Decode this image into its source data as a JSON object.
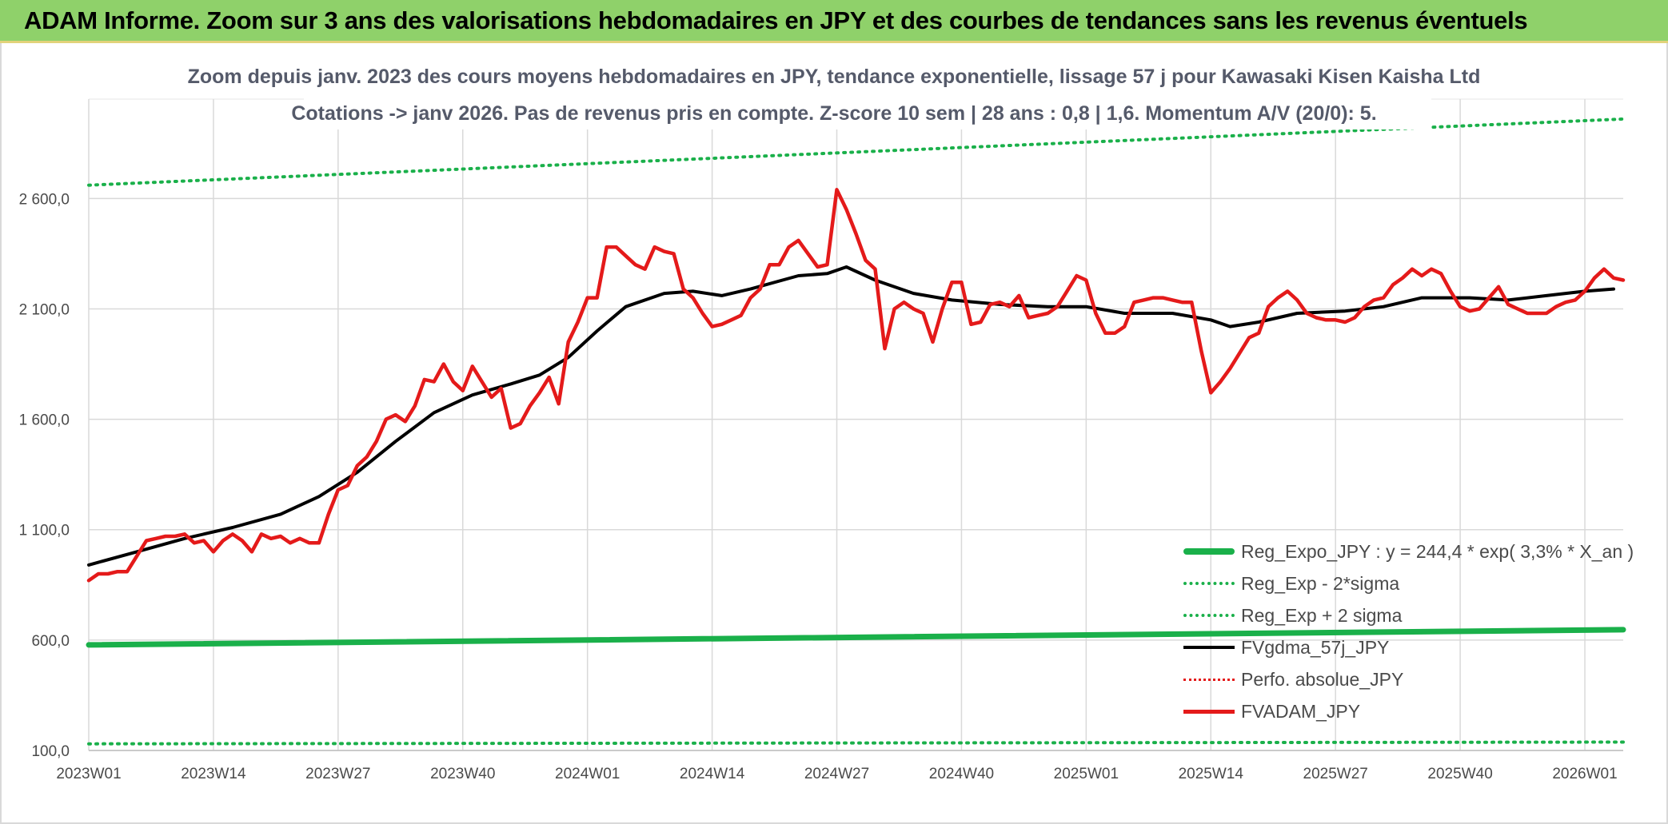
{
  "header": {
    "title": "ADAM Informe. Zoom sur 3 ans des valorisations hebdomadaires en JPY et des courbes de tendances sans les revenus éventuels"
  },
  "chart_data": {
    "type": "line",
    "title_line1": "Zoom depuis janv. 2023 des cours moyens hebdomadaires en JPY, tendance exponentielle, lissage 57 j pour Kawasaki Kisen Kaisha Ltd",
    "title_line2": "Cotations -> janv 2026. Pas de revenus pris en compte. Z-score 10 sem | 28 ans : 0,8 | 1,6. Momentum A/V (20/0): 5.",
    "ylim": [
      100,
      3050
    ],
    "y_ticks": [
      100,
      600,
      1100,
      1600,
      2100,
      2600
    ],
    "y_tick_labels": [
      "100,0",
      "600,0",
      "1 100,0",
      "1 600,0",
      "2 100,0",
      "2 600,0"
    ],
    "x_count": 160,
    "x_ticks": [
      {
        "index": 0,
        "label": "2023W01"
      },
      {
        "index": 13,
        "label": "2023W14"
      },
      {
        "index": 26,
        "label": "2023W27"
      },
      {
        "index": 39,
        "label": "2023W40"
      },
      {
        "index": 52,
        "label": "2024W01"
      },
      {
        "index": 65,
        "label": "2024W14"
      },
      {
        "index": 78,
        "label": "2024W27"
      },
      {
        "index": 91,
        "label": "2024W40"
      },
      {
        "index": 104,
        "label": "2025W01"
      },
      {
        "index": 117,
        "label": "2025W14"
      },
      {
        "index": 130,
        "label": "2025W27"
      },
      {
        "index": 143,
        "label": "2025W40"
      },
      {
        "index": 156,
        "label": "2026W01"
      }
    ],
    "legend_position": "bottom-right",
    "series": [
      {
        "name": "Reg_Expo_JPY : y = 244,4 * exp( 3,3% *  X_an )",
        "style": "solid",
        "color": "#1ab04a",
        "keypoints": [
          [
            0,
            578
          ],
          [
            160,
            647
          ]
        ]
      },
      {
        "name": "Reg_Exp - 2*sigma",
        "style": "dotted",
        "color": "#1ab04a",
        "keypoints": [
          [
            0,
            130
          ],
          [
            160,
            138
          ]
        ]
      },
      {
        "name": "Reg_Exp + 2 sigma",
        "style": "dotted",
        "color": "#1ab04a",
        "keypoints": [
          [
            0,
            2660
          ],
          [
            160,
            2960
          ]
        ]
      },
      {
        "name": "FVgdma_57j_JPY",
        "style": "solid",
        "color": "#000000",
        "keypoints": [
          [
            0,
            940
          ],
          [
            5,
            1000
          ],
          [
            10,
            1060
          ],
          [
            15,
            1110
          ],
          [
            20,
            1170
          ],
          [
            24,
            1250
          ],
          [
            28,
            1360
          ],
          [
            32,
            1500
          ],
          [
            36,
            1630
          ],
          [
            40,
            1710
          ],
          [
            44,
            1760
          ],
          [
            47,
            1800
          ],
          [
            50,
            1880
          ],
          [
            53,
            2000
          ],
          [
            56,
            2110
          ],
          [
            60,
            2170
          ],
          [
            63,
            2180
          ],
          [
            66,
            2160
          ],
          [
            69,
            2190
          ],
          [
            74,
            2250
          ],
          [
            77,
            2260
          ],
          [
            79,
            2290
          ],
          [
            82,
            2230
          ],
          [
            86,
            2170
          ],
          [
            90,
            2140
          ],
          [
            95,
            2120
          ],
          [
            100,
            2110
          ],
          [
            104,
            2110
          ],
          [
            108,
            2080
          ],
          [
            113,
            2080
          ],
          [
            117,
            2050
          ],
          [
            119,
            2020
          ],
          [
            122,
            2040
          ],
          [
            126,
            2080
          ],
          [
            131,
            2090
          ],
          [
            135,
            2110
          ],
          [
            139,
            2150
          ],
          [
            144,
            2150
          ],
          [
            148,
            2140
          ],
          [
            152,
            2160
          ],
          [
            156,
            2180
          ],
          [
            159,
            2190
          ]
        ]
      },
      {
        "name": "Perfo. absolue_JPY",
        "style": "dotted",
        "color": "#e41a1a",
        "keypoints": []
      },
      {
        "name": "FVADAM_JPY",
        "style": "solid",
        "color": "#e41a1a",
        "keypoints": [
          [
            0,
            870
          ],
          [
            1,
            900
          ],
          [
            2,
            900
          ],
          [
            3,
            910
          ],
          [
            4,
            910
          ],
          [
            5,
            980
          ],
          [
            6,
            1050
          ],
          [
            7,
            1060
          ],
          [
            8,
            1070
          ],
          [
            9,
            1070
          ],
          [
            10,
            1080
          ],
          [
            11,
            1040
          ],
          [
            12,
            1050
          ],
          [
            13,
            1000
          ],
          [
            14,
            1050
          ],
          [
            15,
            1080
          ],
          [
            16,
            1050
          ],
          [
            17,
            1000
          ],
          [
            18,
            1080
          ],
          [
            19,
            1060
          ],
          [
            20,
            1070
          ],
          [
            21,
            1040
          ],
          [
            22,
            1060
          ],
          [
            23,
            1040
          ],
          [
            24,
            1040
          ],
          [
            25,
            1170
          ],
          [
            26,
            1280
          ],
          [
            27,
            1300
          ],
          [
            28,
            1390
          ],
          [
            29,
            1430
          ],
          [
            30,
            1500
          ],
          [
            31,
            1600
          ],
          [
            32,
            1620
          ],
          [
            33,
            1590
          ],
          [
            34,
            1660
          ],
          [
            35,
            1780
          ],
          [
            36,
            1770
          ],
          [
            37,
            1850
          ],
          [
            38,
            1770
          ],
          [
            39,
            1730
          ],
          [
            40,
            1840
          ],
          [
            41,
            1770
          ],
          [
            42,
            1700
          ],
          [
            43,
            1740
          ],
          [
            44,
            1560
          ],
          [
            45,
            1580
          ],
          [
            46,
            1660
          ],
          [
            47,
            1720
          ],
          [
            48,
            1790
          ],
          [
            49,
            1670
          ],
          [
            50,
            1950
          ],
          [
            51,
            2040
          ],
          [
            52,
            2150
          ],
          [
            53,
            2150
          ],
          [
            54,
            2380
          ],
          [
            55,
            2380
          ],
          [
            56,
            2340
          ],
          [
            57,
            2300
          ],
          [
            58,
            2280
          ],
          [
            59,
            2380
          ],
          [
            60,
            2360
          ],
          [
            61,
            2350
          ],
          [
            62,
            2190
          ],
          [
            63,
            2150
          ],
          [
            64,
            2080
          ],
          [
            65,
            2020
          ],
          [
            66,
            2030
          ],
          [
            67,
            2050
          ],
          [
            68,
            2070
          ],
          [
            69,
            2150
          ],
          [
            70,
            2190
          ],
          [
            71,
            2300
          ],
          [
            72,
            2300
          ],
          [
            73,
            2380
          ],
          [
            74,
            2410
          ],
          [
            75,
            2350
          ],
          [
            76,
            2290
          ],
          [
            77,
            2300
          ],
          [
            78,
            2640
          ],
          [
            79,
            2550
          ],
          [
            80,
            2440
          ],
          [
            81,
            2320
          ],
          [
            82,
            2280
          ],
          [
            83,
            1920
          ],
          [
            84,
            2100
          ],
          [
            85,
            2130
          ],
          [
            86,
            2100
          ],
          [
            87,
            2080
          ],
          [
            88,
            1950
          ],
          [
            89,
            2100
          ],
          [
            90,
            2220
          ],
          [
            91,
            2220
          ],
          [
            92,
            2030
          ],
          [
            93,
            2040
          ],
          [
            94,
            2120
          ],
          [
            95,
            2130
          ],
          [
            96,
            2110
          ],
          [
            97,
            2160
          ],
          [
            98,
            2060
          ],
          [
            99,
            2070
          ],
          [
            100,
            2080
          ],
          [
            101,
            2110
          ],
          [
            102,
            2180
          ],
          [
            103,
            2250
          ],
          [
            104,
            2230
          ],
          [
            105,
            2080
          ],
          [
            106,
            1990
          ],
          [
            107,
            1990
          ],
          [
            108,
            2020
          ],
          [
            109,
            2130
          ],
          [
            110,
            2140
          ],
          [
            111,
            2150
          ],
          [
            112,
            2150
          ],
          [
            113,
            2140
          ],
          [
            114,
            2130
          ],
          [
            115,
            2130
          ],
          [
            116,
            1910
          ],
          [
            117,
            1720
          ],
          [
            118,
            1770
          ],
          [
            119,
            1830
          ],
          [
            120,
            1900
          ],
          [
            121,
            1970
          ],
          [
            122,
            1990
          ],
          [
            123,
            2110
          ],
          [
            124,
            2150
          ],
          [
            125,
            2180
          ],
          [
            126,
            2140
          ],
          [
            127,
            2080
          ],
          [
            128,
            2060
          ],
          [
            129,
            2050
          ],
          [
            130,
            2050
          ],
          [
            131,
            2040
          ],
          [
            132,
            2060
          ],
          [
            133,
            2110
          ],
          [
            134,
            2140
          ],
          [
            135,
            2150
          ],
          [
            136,
            2210
          ],
          [
            137,
            2240
          ],
          [
            138,
            2280
          ],
          [
            139,
            2250
          ],
          [
            140,
            2280
          ],
          [
            141,
            2260
          ],
          [
            142,
            2180
          ],
          [
            143,
            2110
          ],
          [
            144,
            2090
          ],
          [
            145,
            2100
          ],
          [
            146,
            2150
          ],
          [
            147,
            2200
          ],
          [
            148,
            2120
          ],
          [
            149,
            2100
          ],
          [
            150,
            2080
          ],
          [
            151,
            2080
          ],
          [
            152,
            2080
          ],
          [
            153,
            2110
          ],
          [
            154,
            2130
          ],
          [
            155,
            2140
          ],
          [
            156,
            2180
          ],
          [
            157,
            2240
          ],
          [
            158,
            2280
          ],
          [
            159,
            2240
          ],
          [
            160,
            2230
          ]
        ]
      }
    ]
  }
}
